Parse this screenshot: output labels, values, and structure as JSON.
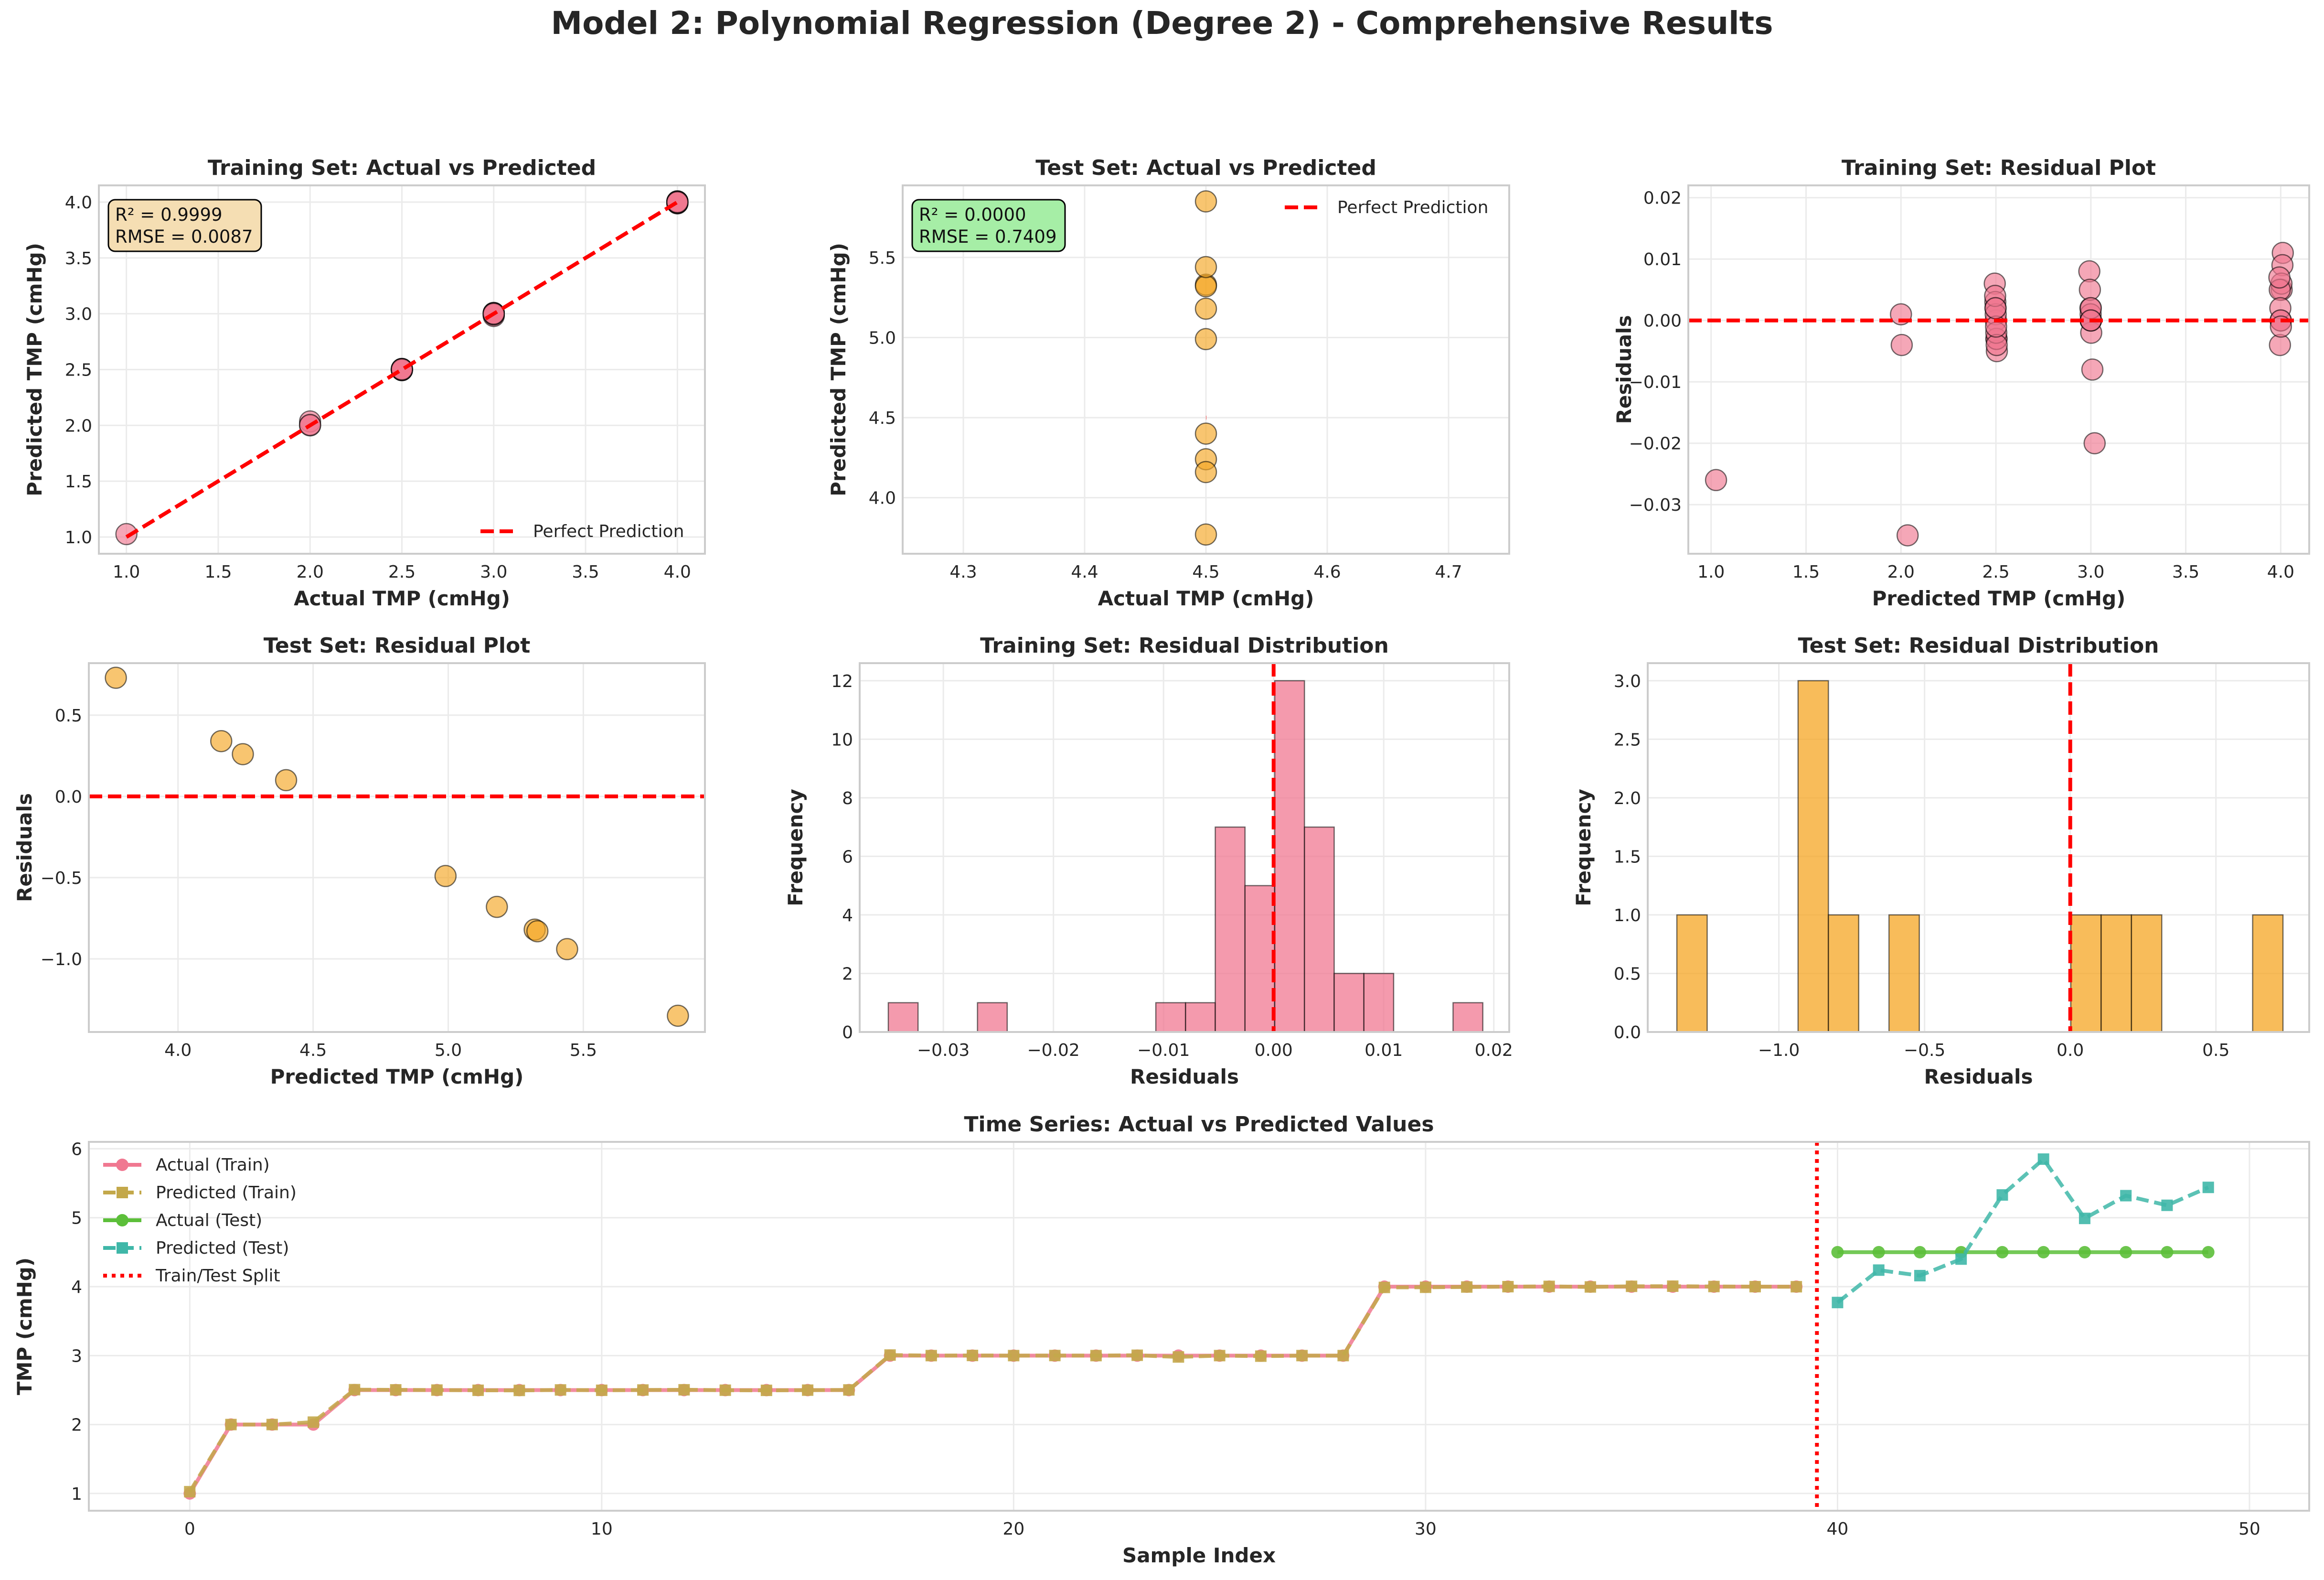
{
  "figure": {
    "suptitle": "Model 2: Polynomial Regression (Degree 2) - Comprehensive Results"
  },
  "colors": {
    "train": "#f07891",
    "test": "#f5a623",
    "ref_line": "#ff0000",
    "pred_train": "#c3a84a",
    "actual_test": "#5cbf3a",
    "pred_test": "#3fb7a8",
    "grid": "#ebebeb",
    "axis": "#cccccc"
  },
  "chart_data": [
    {
      "id": "train-avp",
      "type": "scatter",
      "title": "Training Set: Actual vs Predicted",
      "xlabel": "Actual TMP (cmHg)",
      "ylabel": "Predicted TMP (cmHg)",
      "xlim": [
        0.85,
        4.15
      ],
      "ylim": [
        0.85,
        4.15
      ],
      "xticks": [
        1.0,
        1.5,
        2.0,
        2.5,
        3.0,
        3.5,
        4.0
      ],
      "xtick_labels": [
        "1.0",
        "1.5",
        "2.0",
        "2.5",
        "3.0",
        "3.5",
        "4.0"
      ],
      "yticks": [
        1.0,
        1.5,
        2.0,
        2.5,
        3.0,
        3.5,
        4.0
      ],
      "ytick_labels": [
        "1.0",
        "1.5",
        "2.0",
        "2.5",
        "3.0",
        "3.5",
        "4.0"
      ],
      "grid": true,
      "points": {
        "x": [
          1.0,
          2.0,
          2.0,
          2.0,
          2.5,
          2.5,
          2.5,
          2.5,
          2.5,
          2.5,
          2.5,
          2.5,
          2.5,
          2.5,
          2.5,
          2.5,
          2.5,
          3.0,
          3.0,
          3.0,
          3.0,
          3.0,
          3.0,
          3.0,
          3.0,
          3.0,
          3.0,
          3.0,
          3.0,
          4.0,
          4.0,
          4.0,
          4.0,
          4.0,
          4.0,
          4.0,
          4.0,
          4.0,
          4.0,
          4.0
        ],
        "y": [
          1.026,
          2.035,
          2.0,
          2.004,
          2.506,
          2.503,
          2.5,
          2.497,
          2.495,
          2.502,
          2.497,
          2.501,
          2.504,
          2.498,
          2.496,
          2.499,
          2.502,
          3.008,
          2.98,
          3.002,
          3.0,
          3.001,
          3.0,
          3.005,
          2.998,
          3.0,
          2.992,
          3.0,
          3.0,
          3.989,
          3.991,
          3.995,
          4.0,
          4.004,
          3.996,
          4.005,
          4.007,
          4.002,
          4.0,
          3.999
        ]
      },
      "ref_line": {
        "label": "Perfect Prediction",
        "from": [
          1.0,
          1.0
        ],
        "to": [
          4.0,
          4.0
        ]
      },
      "legend": "lower right",
      "annotation": {
        "line1": "R² = 0.9999",
        "line2": "RMSE = 0.0087",
        "color": "#f5deb3"
      }
    },
    {
      "id": "test-avp",
      "type": "scatter",
      "title": "Test Set: Actual vs Predicted",
      "xlabel": "Actual TMP (cmHg)",
      "ylabel": "Predicted TMP (cmHg)",
      "xlim": [
        4.25,
        4.75
      ],
      "ylim": [
        3.65,
        5.95
      ],
      "xticks": [
        4.3,
        4.4,
        4.5,
        4.6,
        4.7
      ],
      "xtick_labels": [
        "4.3",
        "4.4",
        "4.5",
        "4.6",
        "4.7"
      ],
      "yticks": [
        4.0,
        4.5,
        5.0,
        5.5
      ],
      "ytick_labels": [
        "4.0",
        "4.5",
        "5.0",
        "5.5"
      ],
      "grid": true,
      "points": {
        "x": [
          4.5,
          4.5,
          4.5,
          4.5,
          4.5,
          4.5,
          4.5,
          4.5,
          4.5,
          4.5
        ],
        "y": [
          3.77,
          4.24,
          4.16,
          4.4,
          5.33,
          5.85,
          4.99,
          5.32,
          5.18,
          5.44
        ]
      },
      "ref_line": {
        "label": "Perfect Prediction",
        "from": [
          4.5,
          4.5
        ],
        "to": [
          4.5,
          4.5
        ]
      },
      "legend": "upper right",
      "annotation": {
        "line1": "R² = 0.0000",
        "line2": "RMSE = 0.7409",
        "color": "#a6eea6"
      }
    },
    {
      "id": "train-resid",
      "type": "scatter",
      "title": "Training Set: Residual Plot",
      "xlabel": "Predicted TMP (cmHg)",
      "ylabel": "Residuals",
      "xlim": [
        0.88,
        4.15
      ],
      "ylim": [
        -0.038,
        0.022
      ],
      "xticks": [
        1.0,
        1.5,
        2.0,
        2.5,
        3.0,
        3.5,
        4.0
      ],
      "xtick_labels": [
        "1.0",
        "1.5",
        "2.0",
        "2.5",
        "3.0",
        "3.5",
        "4.0"
      ],
      "yticks": [
        -0.03,
        -0.02,
        -0.01,
        0.0,
        0.01,
        0.02
      ],
      "ytick_labels": [
        "−0.03",
        "−0.02",
        "−0.01",
        "0.00",
        "0.01",
        "0.02"
      ],
      "grid": true,
      "points": {
        "x": [
          1.026,
          2.035,
          2.0,
          2.004,
          2.494,
          2.497,
          2.5,
          2.503,
          2.505,
          2.498,
          2.503,
          2.499,
          2.496,
          2.502,
          2.504,
          2.501,
          2.498,
          2.992,
          3.02,
          2.998,
          3.0,
          2.999,
          3.0,
          2.995,
          3.002,
          3.0,
          3.008,
          3.0,
          3.0,
          4.011,
          4.009,
          4.005,
          4.0,
          3.996,
          4.004,
          3.995,
          3.993,
          3.998,
          4.0,
          4.001
        ],
        "y": [
          -0.026,
          -0.035,
          0.001,
          -0.004,
          0.006,
          0.003,
          0.0,
          -0.003,
          -0.005,
          0.002,
          -0.003,
          0.001,
          0.004,
          -0.002,
          -0.004,
          -0.001,
          0.002,
          0.008,
          -0.02,
          0.002,
          0.0,
          0.001,
          0.0,
          0.005,
          -0.002,
          0.0,
          -0.008,
          0.002,
          0.0,
          0.011,
          0.009,
          0.005,
          0.0,
          -0.004,
          0.006,
          0.005,
          0.007,
          0.002,
          0.0,
          -0.001
        ]
      },
      "hline": 0.0
    },
    {
      "id": "test-resid",
      "type": "scatter",
      "title": "Test Set: Residual Plot",
      "xlabel": "Predicted TMP (cmHg)",
      "ylabel": "Residuals",
      "xlim": [
        3.67,
        5.95
      ],
      "ylim": [
        -1.45,
        0.82
      ],
      "xticks": [
        4.0,
        4.5,
        5.0,
        5.5
      ],
      "xtick_labels": [
        "4.0",
        "4.5",
        "5.0",
        "5.5"
      ],
      "yticks": [
        -1.0,
        -0.5,
        0.0,
        0.5
      ],
      "ytick_labels": [
        "−1.0",
        "−0.5",
        "0.0",
        "0.5"
      ],
      "grid": true,
      "points": {
        "x": [
          3.77,
          4.16,
          4.24,
          4.4,
          4.99,
          5.18,
          5.32,
          5.33,
          5.44,
          5.85
        ],
        "y": [
          0.73,
          0.34,
          0.26,
          0.1,
          -0.49,
          -0.68,
          -0.82,
          -0.83,
          -0.94,
          -1.35
        ]
      },
      "hline": 0.0
    },
    {
      "id": "train-hist",
      "type": "bar",
      "title": "Training Set: Residual Distribution",
      "xlabel": "Residuals",
      "ylabel": "Frequency",
      "xlim": [
        -0.0376,
        0.0214
      ],
      "ylim": [
        0,
        12.6
      ],
      "xticks": [
        -0.03,
        -0.02,
        -0.01,
        0.0,
        0.01,
        0.02
      ],
      "xtick_labels": [
        "−0.03",
        "−0.02",
        "−0.01",
        "0.00",
        "0.01",
        "0.02"
      ],
      "yticks": [
        0,
        2,
        4,
        6,
        8,
        10,
        12
      ],
      "ytick_labels": [
        "0",
        "2",
        "4",
        "6",
        "8",
        "10",
        "12"
      ],
      "grid": true,
      "bins": [
        -0.035,
        -0.0323,
        -0.0296,
        -0.0269,
        -0.0242,
        -0.0215,
        -0.0188,
        -0.0161,
        -0.0134,
        -0.0107,
        -0.008,
        -0.0053,
        -0.0026,
        0.0001,
        0.0028,
        0.0055,
        0.0082,
        0.0109,
        0.0136,
        0.0163,
        0.019
      ],
      "counts": [
        1,
        0,
        0,
        1,
        0,
        0,
        0,
        0,
        0,
        1,
        1,
        7,
        5,
        12,
        7,
        2,
        2,
        0,
        0,
        1
      ],
      "vline": 0.0
    },
    {
      "id": "test-hist",
      "type": "bar",
      "title": "Test Set: Residual Distribution",
      "xlabel": "Residuals",
      "ylabel": "Frequency",
      "xlim": [
        -1.45,
        0.82
      ],
      "ylim": [
        0,
        3.15
      ],
      "xticks": [
        -1.0,
        -0.5,
        0.0,
        0.5
      ],
      "xtick_labels": [
        "−1.0",
        "−0.5",
        "0.0",
        "0.5"
      ],
      "yticks": [
        0.0,
        0.5,
        1.0,
        1.5,
        2.0,
        2.5,
        3.0
      ],
      "ytick_labels": [
        "0.0",
        "0.5",
        "1.0",
        "1.5",
        "2.0",
        "2.5",
        "3.0"
      ],
      "grid": true,
      "bins": [
        -1.35,
        -1.246,
        -1.142,
        -1.038,
        -0.934,
        -0.83,
        -0.726,
        -0.622,
        -0.518,
        -0.414,
        -0.31,
        -0.206,
        -0.102,
        0.002,
        0.106,
        0.21,
        0.314,
        0.418,
        0.522,
        0.626,
        0.73
      ],
      "counts": [
        1,
        0,
        0,
        0,
        3,
        1,
        0,
        1,
        0,
        0,
        0,
        0,
        0,
        1,
        1,
        1,
        0,
        0,
        0,
        1
      ],
      "vline": 0.0
    },
    {
      "id": "timeseries",
      "type": "line",
      "title": "Time Series: Actual vs Predicted Values",
      "xlabel": "Sample Index",
      "ylabel": "TMP (cmHg)",
      "xlim": [
        -2.45,
        51.45
      ],
      "ylim": [
        0.75,
        6.1
      ],
      "xticks": [
        0,
        10,
        20,
        30,
        40,
        50
      ],
      "xtick_labels": [
        "0",
        "10",
        "20",
        "30",
        "40",
        "50"
      ],
      "yticks": [
        1,
        2,
        3,
        4,
        5,
        6
      ],
      "ytick_labels": [
        "1",
        "2",
        "3",
        "4",
        "5",
        "6"
      ],
      "grid": true,
      "series": [
        {
          "name": "Actual (Train)",
          "x": [
            0,
            1,
            2,
            3,
            4,
            5,
            6,
            7,
            8,
            9,
            10,
            11,
            12,
            13,
            14,
            15,
            16,
            17,
            18,
            19,
            20,
            21,
            22,
            23,
            24,
            25,
            26,
            27,
            28,
            29,
            30,
            31,
            32,
            33,
            34,
            35,
            36,
            37,
            38,
            39
          ],
          "values": [
            1.0,
            2.0,
            2.0,
            2.0,
            2.5,
            2.5,
            2.5,
            2.5,
            2.5,
            2.5,
            2.5,
            2.5,
            2.5,
            2.5,
            2.5,
            2.5,
            2.5,
            3.0,
            3.0,
            3.0,
            3.0,
            3.0,
            3.0,
            3.0,
            3.0,
            3.0,
            3.0,
            3.0,
            3.0,
            4.0,
            4.0,
            4.0,
            4.0,
            4.0,
            4.0,
            4.0,
            4.0,
            4.0,
            4.0,
            4.0
          ]
        },
        {
          "name": "Predicted (Train)",
          "x": [
            0,
            1,
            2,
            3,
            4,
            5,
            6,
            7,
            8,
            9,
            10,
            11,
            12,
            13,
            14,
            15,
            16,
            17,
            18,
            19,
            20,
            21,
            22,
            23,
            24,
            25,
            26,
            27,
            28,
            29,
            30,
            31,
            32,
            33,
            34,
            35,
            36,
            37,
            38,
            39
          ],
          "values": [
            1.026,
            2.0,
            2.0,
            2.035,
            2.506,
            2.503,
            2.5,
            2.497,
            2.495,
            2.502,
            2.497,
            2.501,
            2.504,
            2.498,
            2.496,
            2.499,
            2.502,
            3.008,
            3.0,
            3.002,
            3.0,
            3.001,
            3.0,
            3.005,
            2.98,
            3.0,
            2.992,
            3.0,
            3.0,
            3.989,
            3.991,
            3.995,
            4.0,
            4.004,
            3.996,
            4.005,
            4.007,
            4.002,
            4.0,
            3.999
          ]
        },
        {
          "name": "Actual (Test)",
          "x": [
            40,
            41,
            42,
            43,
            44,
            45,
            46,
            47,
            48,
            49
          ],
          "values": [
            4.5,
            4.5,
            4.5,
            4.5,
            4.5,
            4.5,
            4.5,
            4.5,
            4.5,
            4.5
          ]
        },
        {
          "name": "Predicted (Test)",
          "x": [
            40,
            41,
            42,
            43,
            44,
            45,
            46,
            47,
            48,
            49
          ],
          "values": [
            3.77,
            4.24,
            4.16,
            4.4,
            5.33,
            5.85,
            4.99,
            5.32,
            5.18,
            5.44
          ]
        }
      ],
      "split": {
        "name": "Train/Test Split",
        "x": 39.5
      },
      "legend": "upper left"
    }
  ]
}
